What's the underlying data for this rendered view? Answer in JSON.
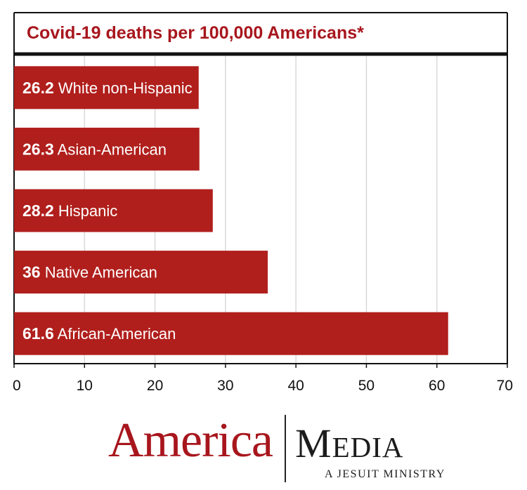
{
  "chart_data": {
    "type": "bar",
    "orientation": "horizontal",
    "title": "Covid-19 deaths per 100,000 Americans*",
    "categories": [
      "White non-Hispanic",
      "Asian-American",
      "Hispanic",
      "Native American",
      "African-American"
    ],
    "values": [
      26.2,
      26.3,
      28.2,
      36,
      61.6
    ],
    "value_labels": [
      "26.2",
      "26.3",
      "28.2",
      "36",
      "61.6"
    ],
    "xlim": [
      0,
      70
    ],
    "xticks": [
      0,
      10,
      20,
      30,
      40,
      50,
      60,
      70
    ],
    "xlabel": "",
    "ylabel": "",
    "grid": "vertical",
    "bar_color": "#b01f1c",
    "title_color": "#a8161d"
  },
  "logo": {
    "left": "America",
    "right": "Media",
    "tagline": "A JESUIT MINISTRY"
  }
}
